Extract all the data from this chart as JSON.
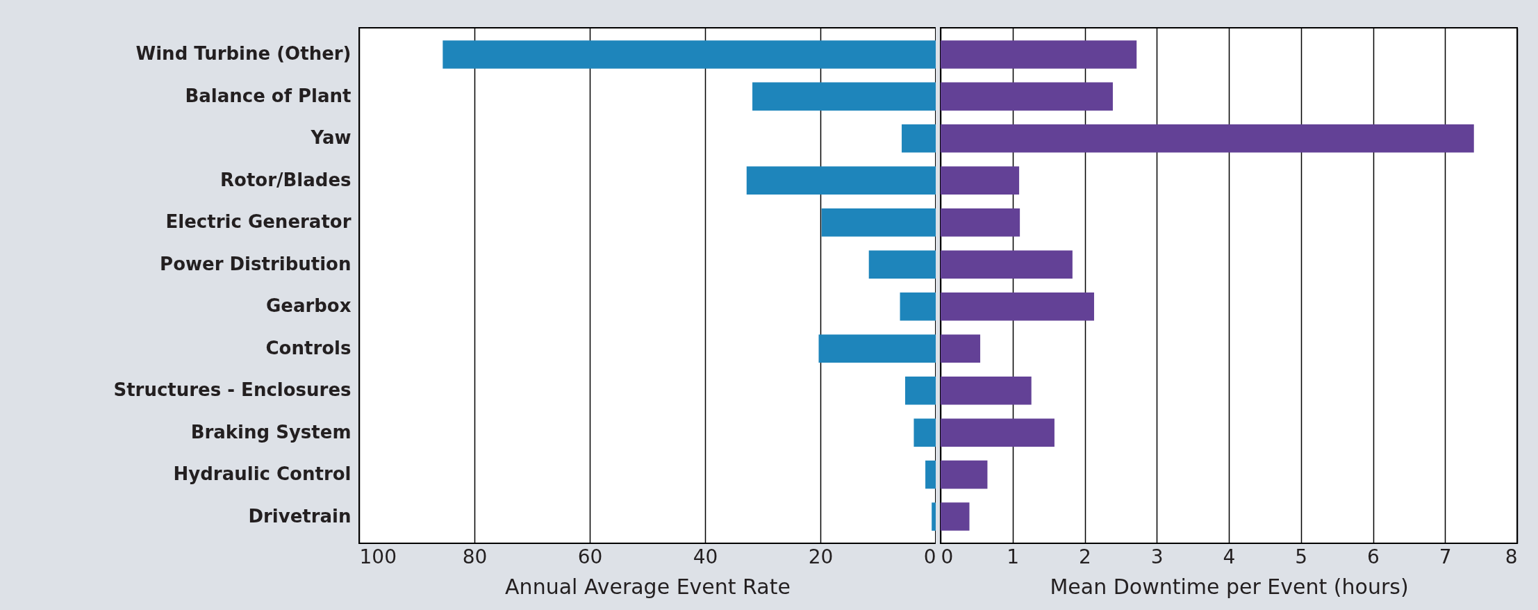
{
  "chart_data": [
    {
      "type": "bar",
      "orientation": "horizontal",
      "xlabel": "Annual Average Event Rate",
      "categories": [
        "Wind Turbine (Other)",
        "Balance of Plant",
        "Yaw",
        "Rotor/Blades",
        "Electric Generator",
        "Power Distribution",
        "Gearbox",
        "Controls",
        "Structures - Enclosures",
        "Braking System",
        "Hydraulic Control",
        "Drivetrain"
      ],
      "values": [
        85.5,
        31.8,
        5.9,
        32.8,
        19.8,
        11.6,
        6.2,
        20.3,
        5.3,
        3.8,
        1.8,
        0.7
      ],
      "color": "#1e85bb",
      "xlim": [
        100,
        0
      ],
      "xticks": [
        100,
        80,
        60,
        40,
        20,
        0
      ],
      "grid": "x"
    },
    {
      "type": "bar",
      "orientation": "horizontal",
      "xlabel": "Mean Downtime per Event (hours)",
      "categories": [
        null,
        null,
        null,
        null,
        null,
        null,
        null,
        null,
        null,
        null,
        null,
        null
      ],
      "values": [
        2.72,
        2.39,
        7.4,
        1.09,
        1.1,
        1.83,
        2.13,
        0.55,
        1.26,
        1.58,
        0.65,
        0.4
      ],
      "color": "#634196",
      "xlim": [
        0,
        8
      ],
      "xticks": [
        0,
        1,
        2,
        3,
        4,
        5,
        6,
        7,
        8
      ],
      "grid": "x"
    }
  ]
}
